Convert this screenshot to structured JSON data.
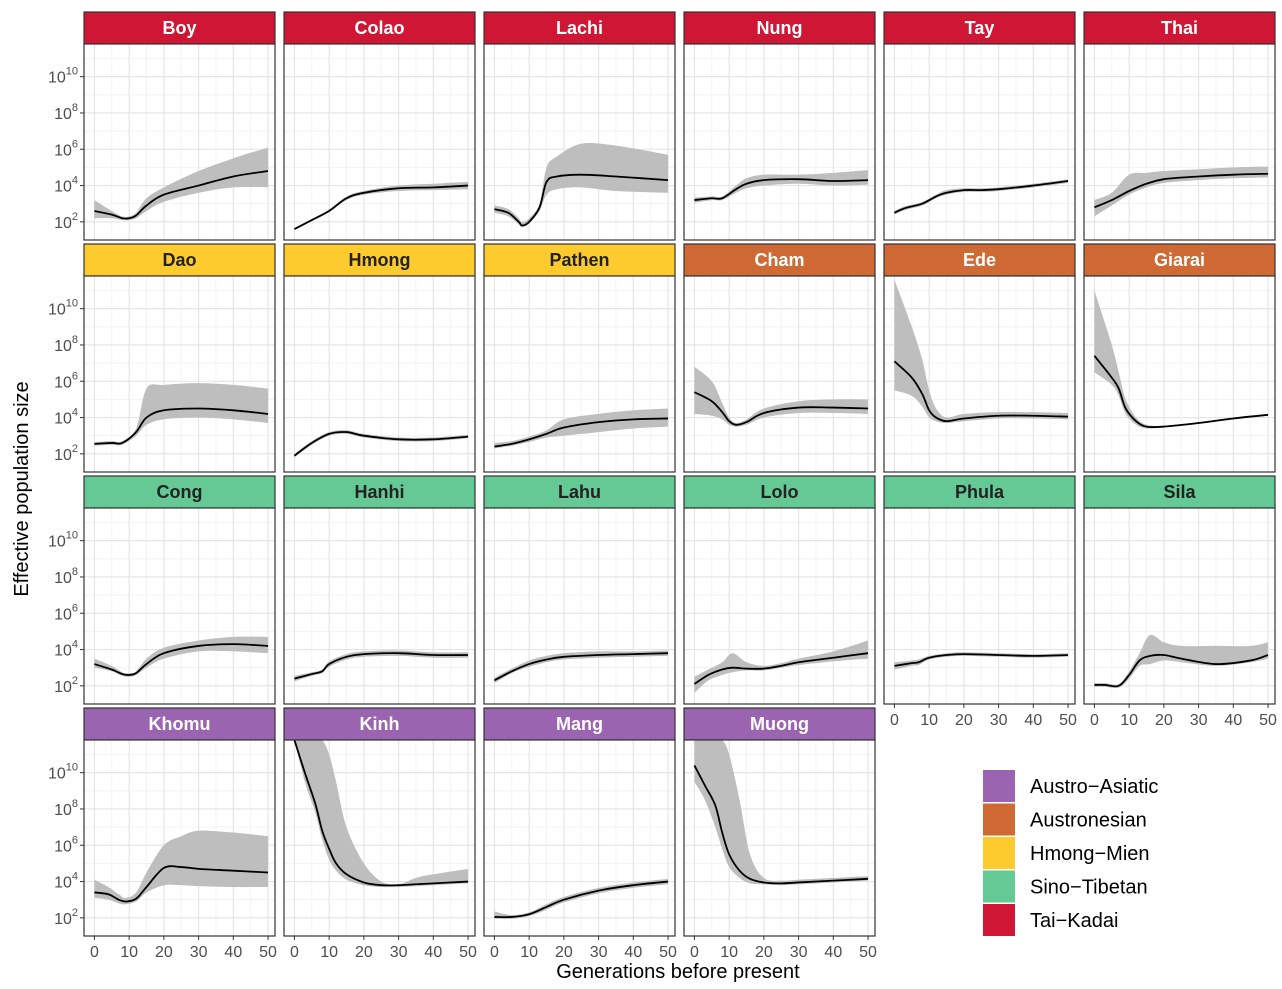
{
  "chart_data": {
    "type": "area",
    "xlabel": "Generations before present",
    "ylabel": "Effective population size",
    "x_ticks": [
      0,
      10,
      20,
      30,
      40,
      50
    ],
    "x_tick_labels": [
      "0",
      "10",
      "20",
      "30",
      "40",
      "50"
    ],
    "xlim": [
      -3,
      52
    ],
    "y_scale": "log10",
    "y_ticks": [
      100,
      10000,
      1000000,
      100000000,
      10000000000
    ],
    "y_tick_labels": [
      {
        "base": "10",
        "exp": "2"
      },
      {
        "base": "10",
        "exp": "4"
      },
      {
        "base": "10",
        "exp": "6"
      },
      {
        "base": "10",
        "exp": "8"
      },
      {
        "base": "10",
        "exp": "10"
      }
    ],
    "ylim_log10": [
      1.0,
      11.8
    ],
    "grid": true,
    "legend": {
      "placement": "bottom-right",
      "entries": [
        {
          "label": "Austro−Asiatic",
          "color": "#9B64B0"
        },
        {
          "label": "Austronesian",
          "color": "#CF6A35"
        },
        {
          "label": "Hmong−Mien",
          "color": "#FECB2F"
        },
        {
          "label": "Sino−Tibetan",
          "color": "#65C995"
        },
        {
          "label": "Tai−Kadai",
          "color": "#CF1634"
        }
      ]
    },
    "panels": [
      {
        "name": "Boy",
        "group": "Tai−Kadai",
        "text_color": "#ffffff",
        "x": [
          0,
          5,
          8,
          10,
          12,
          15,
          20,
          30,
          40,
          50
        ],
        "y": [
          2.6,
          2.4,
          2.2,
          2.2,
          2.35,
          2.9,
          3.5,
          4.0,
          4.5,
          4.8
        ],
        "lo": [
          2.2,
          2.2,
          2.1,
          2.1,
          2.2,
          2.6,
          3.1,
          3.6,
          3.9,
          3.9
        ],
        "hi": [
          3.2,
          2.6,
          2.3,
          2.3,
          2.5,
          3.3,
          3.9,
          4.8,
          5.5,
          6.1
        ]
      },
      {
        "name": "Colao",
        "group": "Tai−Kadai",
        "text_color": "#ffffff",
        "x": [
          0,
          5,
          10,
          15,
          20,
          30,
          40,
          50
        ],
        "y": [
          1.6,
          2.1,
          2.6,
          3.3,
          3.6,
          3.85,
          3.9,
          4.0
        ],
        "lo": [
          1.55,
          2.05,
          2.55,
          3.2,
          3.5,
          3.7,
          3.75,
          3.8
        ],
        "hi": [
          1.65,
          2.15,
          2.7,
          3.4,
          3.7,
          4.0,
          4.1,
          4.2
        ]
      },
      {
        "name": "Lachi",
        "group": "Tai−Kadai",
        "text_color": "#ffffff",
        "x": [
          0,
          4,
          7,
          8,
          10,
          13,
          15,
          18,
          25,
          35,
          50
        ],
        "y": [
          2.7,
          2.5,
          2.0,
          1.8,
          2.0,
          2.8,
          4.2,
          4.5,
          4.6,
          4.5,
          4.3
        ],
        "lo": [
          2.5,
          2.3,
          1.85,
          1.7,
          1.9,
          2.6,
          3.5,
          3.8,
          3.9,
          3.7,
          3.6
        ],
        "hi": [
          2.9,
          2.7,
          2.2,
          2.0,
          2.2,
          3.0,
          5.0,
          5.6,
          6.3,
          6.2,
          5.7
        ]
      },
      {
        "name": "Nung",
        "group": "Tai−Kadai",
        "text_color": "#ffffff",
        "x": [
          0,
          5,
          8,
          12,
          15,
          20,
          30,
          40,
          50
        ],
        "y": [
          3.2,
          3.3,
          3.3,
          3.8,
          4.1,
          4.3,
          4.35,
          4.25,
          4.3
        ],
        "lo": [
          3.05,
          3.2,
          3.2,
          3.6,
          3.85,
          4.0,
          4.1,
          4.0,
          4.05
        ],
        "hi": [
          3.35,
          3.4,
          3.4,
          4.0,
          4.4,
          4.6,
          4.6,
          4.7,
          4.85
        ]
      },
      {
        "name": "Tay",
        "group": "Tai−Kadai",
        "text_color": "#ffffff",
        "x": [
          0,
          3,
          8,
          12,
          15,
          20,
          25,
          30,
          40,
          50
        ],
        "y": [
          2.5,
          2.75,
          3.0,
          3.4,
          3.6,
          3.75,
          3.75,
          3.8,
          4.0,
          4.25
        ],
        "lo": [
          2.4,
          2.65,
          2.9,
          3.3,
          3.5,
          3.65,
          3.65,
          3.7,
          3.9,
          4.15
        ],
        "hi": [
          2.6,
          2.85,
          3.1,
          3.5,
          3.75,
          3.85,
          3.85,
          3.9,
          4.1,
          4.35
        ]
      },
      {
        "name": "Thai",
        "group": "Tai−Kadai",
        "text_color": "#ffffff",
        "x": [
          0,
          5,
          10,
          15,
          20,
          30,
          40,
          50
        ],
        "y": [
          2.8,
          3.2,
          3.7,
          4.1,
          4.35,
          4.5,
          4.6,
          4.65
        ],
        "lo": [
          2.3,
          2.9,
          3.5,
          3.9,
          4.15,
          4.3,
          4.4,
          4.45
        ],
        "hi": [
          3.2,
          3.6,
          4.6,
          4.7,
          4.8,
          4.9,
          5.0,
          5.05
        ]
      },
      {
        "name": "Dao",
        "group": "Hmong−Mien",
        "text_color": "#222222",
        "x": [
          0,
          5,
          8,
          12,
          15,
          20,
          30,
          40,
          50
        ],
        "y": [
          2.55,
          2.6,
          2.6,
          3.2,
          4.0,
          4.4,
          4.5,
          4.4,
          4.2
        ],
        "lo": [
          2.45,
          2.5,
          2.5,
          3.0,
          3.6,
          3.9,
          4.0,
          3.9,
          3.7
        ],
        "hi": [
          2.65,
          2.7,
          2.7,
          3.4,
          5.6,
          5.8,
          5.9,
          5.8,
          5.6
        ]
      },
      {
        "name": "Hmong",
        "group": "Hmong−Mien",
        "text_color": "#222222",
        "x": [
          0,
          5,
          10,
          15,
          20,
          30,
          40,
          50
        ],
        "y": [
          1.9,
          2.6,
          3.1,
          3.2,
          3.0,
          2.8,
          2.8,
          2.95
        ],
        "lo": [
          1.8,
          2.5,
          3.0,
          3.1,
          2.9,
          2.7,
          2.7,
          2.85
        ],
        "hi": [
          2.0,
          2.7,
          3.2,
          3.3,
          3.1,
          2.9,
          2.9,
          3.05
        ]
      },
      {
        "name": "Pathen",
        "group": "Hmong−Mien",
        "text_color": "#222222",
        "x": [
          0,
          5,
          10,
          15,
          20,
          30,
          40,
          50
        ],
        "y": [
          2.4,
          2.55,
          2.8,
          3.1,
          3.45,
          3.75,
          3.9,
          3.95
        ],
        "lo": [
          2.3,
          2.45,
          2.65,
          2.9,
          3.0,
          3.2,
          3.4,
          3.5
        ],
        "hi": [
          2.6,
          2.7,
          2.95,
          3.3,
          3.9,
          4.2,
          4.4,
          4.5
        ]
      },
      {
        "name": "Cham",
        "group": "Austronesian",
        "text_color": "#ffffff",
        "x": [
          0,
          5,
          8,
          10,
          12,
          15,
          20,
          30,
          40,
          50
        ],
        "y": [
          5.4,
          4.9,
          4.3,
          3.8,
          3.6,
          3.75,
          4.25,
          4.55,
          4.55,
          4.5
        ],
        "lo": [
          4.2,
          4.1,
          3.9,
          3.6,
          3.5,
          3.6,
          4.0,
          4.25,
          4.25,
          4.2
        ],
        "hi": [
          6.8,
          6.0,
          4.8,
          4.0,
          3.7,
          3.9,
          4.5,
          4.9,
          5.0,
          5.0
        ]
      },
      {
        "name": "Ede",
        "group": "Austronesian",
        "text_color": "#ffffff",
        "x": [
          0,
          5,
          8,
          10,
          12,
          15,
          20,
          30,
          40,
          50
        ],
        "y": [
          7.1,
          6.2,
          5.3,
          4.4,
          4.0,
          3.8,
          3.95,
          4.1,
          4.1,
          4.05
        ],
        "lo": [
          5.5,
          5.2,
          4.6,
          4.0,
          3.8,
          3.7,
          3.8,
          3.95,
          3.95,
          3.9
        ],
        "hi": [
          11.6,
          9.0,
          7.2,
          5.5,
          4.5,
          4.0,
          4.2,
          4.3,
          4.3,
          4.25
        ]
      },
      {
        "name": "Giarai",
        "group": "Austronesian",
        "text_color": "#ffffff",
        "x": [
          0,
          5,
          7,
          9,
          12,
          15,
          20,
          30,
          40,
          50
        ],
        "y": [
          7.4,
          6.2,
          5.6,
          4.5,
          3.8,
          3.5,
          3.5,
          3.7,
          3.95,
          4.15
        ],
        "lo": [
          6.5,
          5.8,
          5.2,
          4.2,
          3.6,
          3.4,
          3.45,
          3.65,
          3.9,
          4.1
        ],
        "hi": [
          11.0,
          8.0,
          6.5,
          5.0,
          4.0,
          3.6,
          3.55,
          3.75,
          4.0,
          4.2
        ]
      },
      {
        "name": "Cong",
        "group": "Sino−Tibetan",
        "text_color": "#222222",
        "x": [
          0,
          5,
          8,
          10,
          12,
          15,
          20,
          30,
          40,
          50
        ],
        "y": [
          3.2,
          2.9,
          2.65,
          2.6,
          2.7,
          3.2,
          3.8,
          4.2,
          4.3,
          4.2
        ],
        "lo": [
          3.0,
          2.8,
          2.55,
          2.5,
          2.6,
          3.0,
          3.5,
          3.9,
          3.9,
          3.8
        ],
        "hi": [
          3.5,
          3.1,
          2.75,
          2.7,
          2.8,
          3.5,
          4.1,
          4.5,
          4.7,
          4.7
        ]
      },
      {
        "name": "Hanhi",
        "group": "Sino−Tibetan",
        "text_color": "#222222",
        "x": [
          0,
          5,
          8,
          10,
          15,
          20,
          30,
          40,
          50
        ],
        "y": [
          2.4,
          2.65,
          2.8,
          3.2,
          3.6,
          3.75,
          3.8,
          3.7,
          3.7
        ],
        "lo": [
          2.25,
          2.55,
          2.7,
          3.05,
          3.45,
          3.6,
          3.65,
          3.55,
          3.55
        ],
        "hi": [
          2.55,
          2.75,
          2.9,
          3.35,
          3.75,
          3.9,
          3.95,
          3.85,
          3.85
        ]
      },
      {
        "name": "Lahu",
        "group": "Sino−Tibetan",
        "text_color": "#222222",
        "x": [
          0,
          5,
          10,
          15,
          20,
          30,
          40,
          50
        ],
        "y": [
          2.3,
          2.8,
          3.2,
          3.45,
          3.6,
          3.7,
          3.75,
          3.8
        ],
        "lo": [
          2.15,
          2.7,
          3.05,
          3.3,
          3.45,
          3.55,
          3.6,
          3.65
        ],
        "hi": [
          2.45,
          2.95,
          3.4,
          3.65,
          3.8,
          3.9,
          3.9,
          3.95
        ]
      },
      {
        "name": "Lolo",
        "group": "Sino−Tibetan",
        "text_color": "#222222",
        "x": [
          0,
          4,
          8,
          11,
          15,
          20,
          25,
          30,
          40,
          50
        ],
        "y": [
          2.1,
          2.6,
          2.9,
          3.0,
          2.95,
          2.95,
          3.1,
          3.3,
          3.55,
          3.8
        ],
        "lo": [
          1.6,
          2.3,
          2.6,
          2.75,
          2.85,
          2.85,
          3.0,
          3.15,
          3.35,
          3.5
        ],
        "hi": [
          2.5,
          2.9,
          3.3,
          3.8,
          3.3,
          3.1,
          3.25,
          3.5,
          3.9,
          4.5
        ]
      },
      {
        "name": "Phula",
        "group": "Sino−Tibetan",
        "text_color": "#222222",
        "x": [
          0,
          5,
          7,
          10,
          15,
          20,
          30,
          40,
          50
        ],
        "y": [
          3.1,
          3.25,
          3.3,
          3.55,
          3.7,
          3.75,
          3.7,
          3.65,
          3.7
        ],
        "lo": [
          2.9,
          3.1,
          3.15,
          3.45,
          3.6,
          3.65,
          3.6,
          3.55,
          3.6
        ],
        "hi": [
          3.3,
          3.4,
          3.45,
          3.65,
          3.8,
          3.85,
          3.8,
          3.75,
          3.8
        ]
      },
      {
        "name": "Sila",
        "group": "Sino−Tibetan",
        "text_color": "#222222",
        "x": [
          0,
          3,
          7,
          10,
          13,
          16,
          20,
          25,
          35,
          45,
          50
        ],
        "y": [
          2.05,
          2.05,
          2.0,
          2.6,
          3.4,
          3.65,
          3.7,
          3.5,
          3.2,
          3.4,
          3.7
        ],
        "lo": [
          1.95,
          1.95,
          1.9,
          2.4,
          3.1,
          3.2,
          3.4,
          3.3,
          3.1,
          3.3,
          3.5
        ],
        "hi": [
          2.15,
          2.15,
          2.1,
          2.8,
          3.8,
          4.8,
          4.4,
          4.2,
          4.2,
          4.2,
          4.4
        ]
      },
      {
        "name": "Khomu",
        "group": "Austro−Asiatic",
        "text_color": "#ffffff",
        "x": [
          0,
          4,
          7,
          9,
          12,
          15,
          20,
          25,
          30,
          40,
          50
        ],
        "y": [
          3.4,
          3.3,
          3.0,
          2.9,
          3.05,
          3.7,
          4.75,
          4.8,
          4.7,
          4.6,
          4.5
        ],
        "lo": [
          3.1,
          3.0,
          2.8,
          2.75,
          2.9,
          3.4,
          3.8,
          3.8,
          3.75,
          3.7,
          3.7
        ],
        "hi": [
          4.1,
          3.7,
          3.3,
          3.1,
          3.4,
          4.5,
          6.0,
          6.5,
          6.8,
          6.7,
          6.5
        ]
      },
      {
        "name": "Kinh",
        "group": "Austro−Asiatic",
        "text_color": "#ffffff",
        "x": [
          0,
          3,
          6,
          8,
          10,
          12,
          15,
          20,
          25,
          30,
          35,
          40,
          50
        ],
        "y": [
          11.8,
          10.0,
          8.3,
          6.8,
          5.8,
          5.0,
          4.4,
          3.95,
          3.8,
          3.8,
          3.85,
          3.9,
          4.0
        ],
        "lo": [
          11.8,
          9.5,
          7.8,
          6.3,
          5.2,
          4.6,
          4.1,
          3.8,
          3.7,
          3.7,
          3.75,
          3.8,
          3.9
        ],
        "hi": [
          11.8,
          11.8,
          11.8,
          11.8,
          11.0,
          9.5,
          7.0,
          5.0,
          4.0,
          3.85,
          4.2,
          4.4,
          4.7
        ]
      },
      {
        "name": "Mang",
        "group": "Austro−Asiatic",
        "text_color": "#ffffff",
        "x": [
          0,
          5,
          10,
          15,
          20,
          30,
          40,
          50
        ],
        "y": [
          2.05,
          2.05,
          2.2,
          2.6,
          3.0,
          3.5,
          3.8,
          4.0
        ],
        "lo": [
          1.95,
          1.95,
          2.1,
          2.45,
          2.85,
          3.35,
          3.65,
          3.85
        ],
        "hi": [
          2.35,
          2.15,
          2.3,
          2.75,
          3.15,
          3.65,
          3.95,
          4.15
        ]
      },
      {
        "name": "Muong",
        "group": "Austro−Asiatic",
        "text_color": "#ffffff",
        "x": [
          0,
          3,
          6,
          8,
          10,
          13,
          16,
          20,
          25,
          30,
          40,
          50
        ],
        "y": [
          10.4,
          9.3,
          8.2,
          6.7,
          5.5,
          4.6,
          4.15,
          3.95,
          3.9,
          3.95,
          4.05,
          4.15
        ],
        "lo": [
          9.5,
          8.5,
          7.0,
          5.8,
          4.8,
          4.2,
          3.9,
          3.85,
          3.8,
          3.85,
          3.95,
          4.05
        ],
        "hi": [
          11.8,
          11.8,
          11.8,
          11.8,
          11.0,
          8.5,
          5.5,
          4.2,
          4.05,
          4.1,
          4.2,
          4.3
        ]
      }
    ]
  }
}
